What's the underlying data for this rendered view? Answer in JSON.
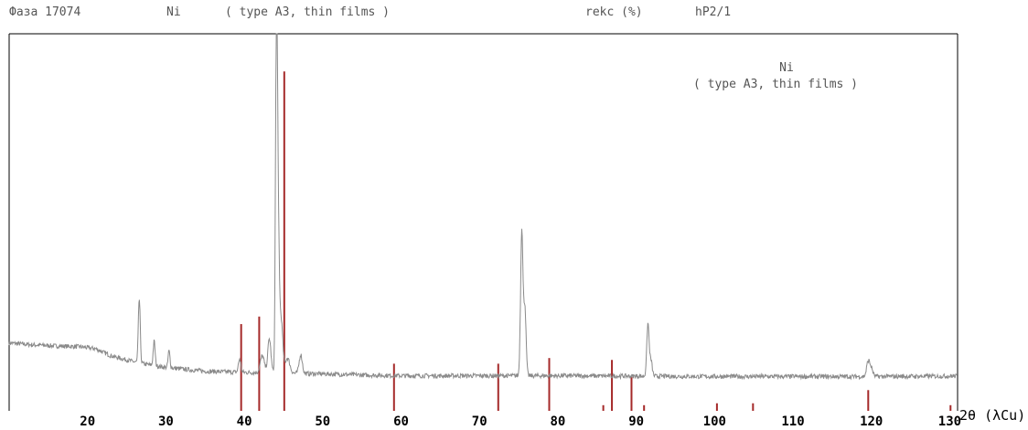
{
  "header": {
    "phase_label": "Фаза 17074",
    "element": "Ni",
    "phase_desc": "( type A3, thin films )",
    "fit_label": "rekc (%)",
    "space_group": "hP2/1"
  },
  "legend": {
    "element": "Ni",
    "desc": "( type A3, thin films )"
  },
  "colors": {
    "pattern": "#8a8a8a",
    "reference": "#a52a2a",
    "axis": "#000000",
    "text": "#555555"
  },
  "chart_data": {
    "type": "line",
    "xlabel": "2θ (λCu)",
    "xlim": [
      10,
      131
    ],
    "ylim": [
      0,
      100
    ],
    "x_ticks": [
      20,
      30,
      40,
      50,
      60,
      70,
      80,
      90,
      100,
      110,
      120,
      130
    ],
    "x_tick_labels": [
      "20",
      "30",
      "40",
      "50",
      "60",
      "70",
      "80",
      "90",
      "100",
      "110",
      "120",
      "130"
    ],
    "series": [
      {
        "type": "line",
        "background": [
          [
            10,
            18
          ],
          [
            13,
            17.5
          ],
          [
            16,
            17.2
          ],
          [
            19,
            17
          ],
          [
            21,
            16.5
          ],
          [
            23,
            14.6
          ],
          [
            25,
            13.5
          ],
          [
            27,
            12.5
          ],
          [
            30,
            11.5
          ],
          [
            35,
            10.5
          ],
          [
            40,
            10.2
          ],
          [
            45,
            10
          ],
          [
            50,
            9.8
          ],
          [
            55,
            9.5
          ],
          [
            60,
            9.3
          ],
          [
            70,
            9.3
          ],
          [
            80,
            9.3
          ],
          [
            90,
            9.2
          ],
          [
            100,
            9.1
          ],
          [
            110,
            9.1
          ],
          [
            120,
            9.1
          ],
          [
            131,
            9.2
          ]
        ],
        "peaks": [
          {
            "x": 26.6,
            "height": 17,
            "width": 0.12
          },
          {
            "x": 28.5,
            "height": 6.5,
            "width": 0.12
          },
          {
            "x": 30.4,
            "height": 4.5,
            "width": 0.12
          },
          {
            "x": 39.4,
            "height": 3.5,
            "width": 0.15
          },
          {
            "x": 42.3,
            "height": 4.5,
            "width": 0.25
          },
          {
            "x": 43.2,
            "height": 9,
            "width": 0.2
          },
          {
            "x": 44.1,
            "height": 86,
            "width": 0.12
          },
          {
            "x": 44.3,
            "height": 40,
            "width": 0.15
          },
          {
            "x": 44.7,
            "height": 14,
            "width": 0.2
          },
          {
            "x": 45.5,
            "height": 4,
            "width": 0.3
          },
          {
            "x": 47.2,
            "height": 5,
            "width": 0.2
          },
          {
            "x": 75.4,
            "height": 39,
            "width": 0.15
          },
          {
            "x": 75.8,
            "height": 18,
            "width": 0.15
          },
          {
            "x": 91.5,
            "height": 14,
            "width": 0.15
          },
          {
            "x": 91.9,
            "height": 4,
            "width": 0.15
          },
          {
            "x": 119.6,
            "height": 4,
            "width": 0.2
          },
          {
            "x": 120.0,
            "height": 2,
            "width": 0.2
          }
        ],
        "noise_amplitude": 0.6
      }
    ],
    "reference_lines": [
      {
        "x": 39.6,
        "intensity": 23
      },
      {
        "x": 41.9,
        "intensity": 25
      },
      {
        "x": 45.1,
        "intensity": 90
      },
      {
        "x": 59.1,
        "intensity": 12.5
      },
      {
        "x": 72.4,
        "intensity": 12.5
      },
      {
        "x": 78.9,
        "intensity": 14
      },
      {
        "x": 85.8,
        "intensity": 1.5
      },
      {
        "x": 86.9,
        "intensity": 13.5
      },
      {
        "x": 89.4,
        "intensity": 9
      },
      {
        "x": 91.0,
        "intensity": 1.5
      },
      {
        "x": 100.3,
        "intensity": 2
      },
      {
        "x": 104.9,
        "intensity": 2
      },
      {
        "x": 119.6,
        "intensity": 5.5
      },
      {
        "x": 130.1,
        "intensity": 1.5
      }
    ]
  }
}
